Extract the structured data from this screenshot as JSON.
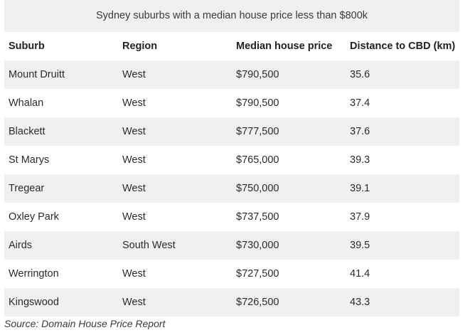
{
  "table": {
    "caption": "Sydney suburbs with a median house price less than $800k",
    "headers": [
      "Suburb",
      "Region",
      "Median house price",
      "Distance to CBD (km)"
    ],
    "rows": [
      [
        "Mount Druitt",
        "West",
        "$790,500",
        "35.6"
      ],
      [
        "Whalan",
        "West",
        "$790,500",
        "37.4"
      ],
      [
        "Blackett",
        "West",
        "$777,500",
        "37.6"
      ],
      [
        "St Marys",
        "West",
        "$765,000",
        "39.3"
      ],
      [
        "Tregear",
        "West",
        "$750,000",
        "39.1"
      ],
      [
        "Oxley Park",
        "West",
        "$737,500",
        "37.9"
      ],
      [
        "Airds",
        "South West",
        "$730,000",
        "39.5"
      ],
      [
        "Werrington",
        "West",
        "$727,500",
        "41.4"
      ],
      [
        "Kingswood",
        "West",
        "$726,500",
        "43.3"
      ]
    ]
  },
  "source": "Source: Domain House Price Report"
}
